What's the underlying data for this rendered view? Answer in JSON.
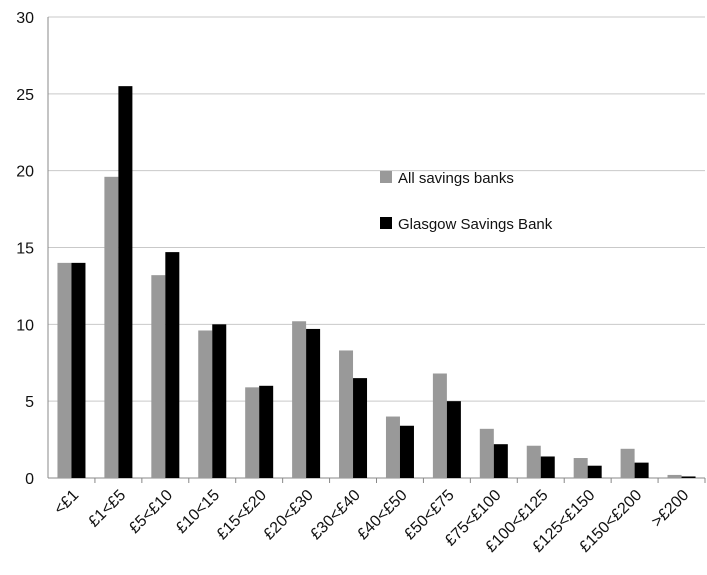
{
  "chart_data": {
    "type": "bar",
    "title": "",
    "xlabel": "",
    "ylabel": "",
    "ylim": [
      0,
      30
    ],
    "yticks": [
      "0",
      "5",
      "10",
      "15",
      "20",
      "25",
      "30"
    ],
    "grid": true,
    "legend_position": "center-right",
    "categories": [
      "<£1",
      "£1<£5",
      "£5<£10",
      "£10<15",
      "£15<£20",
      "£20<£30",
      "£30<£40",
      "£40<£50",
      "£50<£75",
      "£75<£100",
      "£100<£125",
      "£125<£150",
      "£150<£200",
      ">£200"
    ],
    "series": [
      {
        "name": "All savings banks",
        "color": "#999999",
        "values": [
          14.0,
          19.6,
          13.2,
          9.6,
          5.9,
          10.2,
          8.3,
          4.0,
          6.8,
          3.2,
          2.1,
          1.3,
          1.9,
          0.2
        ]
      },
      {
        "name": "Glasgow Savings Bank",
        "color": "#000000",
        "values": [
          14.0,
          25.5,
          14.7,
          10.0,
          6.0,
          9.7,
          6.5,
          3.4,
          5.0,
          2.2,
          1.4,
          0.8,
          1.0,
          0.1
        ]
      }
    ]
  }
}
